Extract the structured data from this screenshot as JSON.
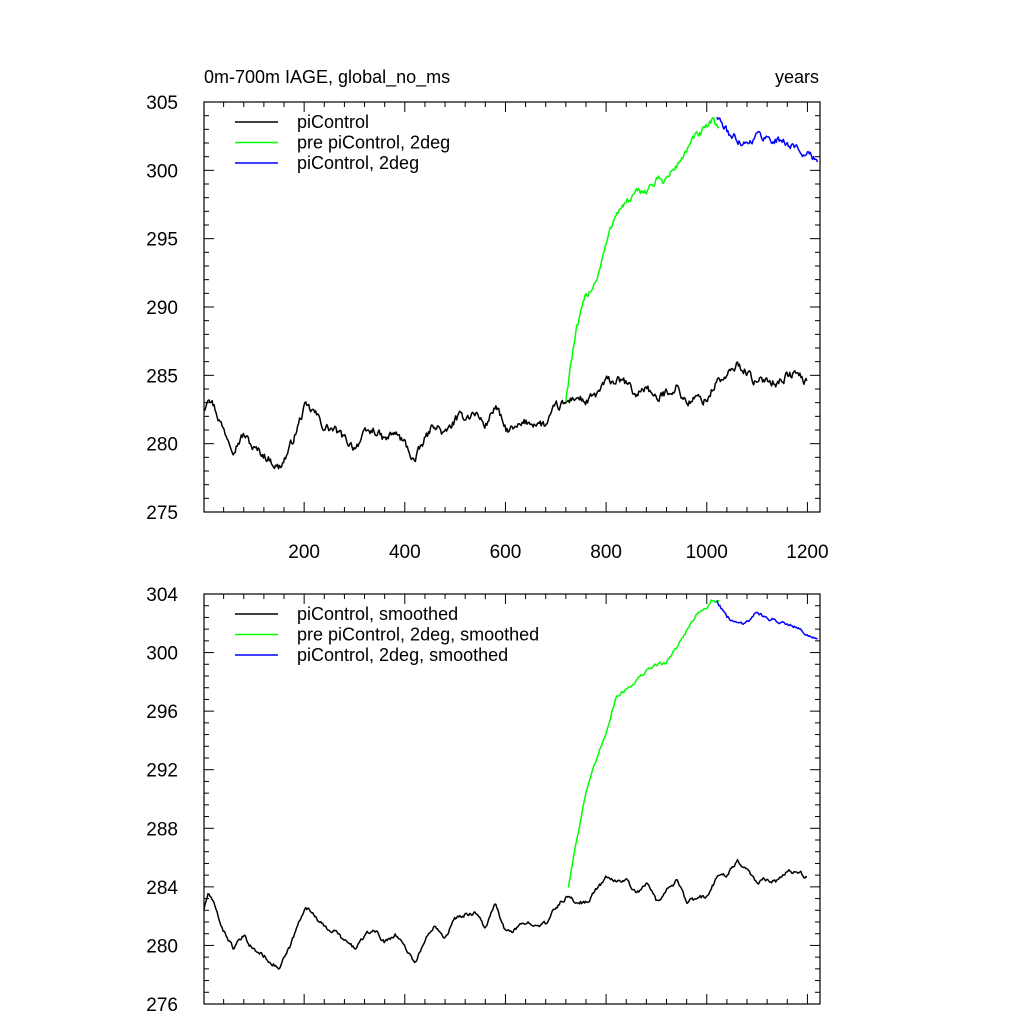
{
  "colors": {
    "black": "#000000",
    "green": "#00ff00",
    "blue": "#0000ff"
  },
  "chart_data": [
    {
      "type": "line",
      "title": "0m-700m IAGE, global_no_ms",
      "units_label": "years",
      "xlim": [
        1,
        1225
      ],
      "ylim": [
        275,
        305
      ],
      "x_ticks": [
        200,
        400,
        600,
        800,
        1000,
        1200
      ],
      "x_tick_labels": [
        "200",
        "400",
        "600",
        "800",
        "1000",
        "1200"
      ],
      "y_ticks": [
        275,
        280,
        285,
        290,
        295,
        300,
        305
      ],
      "y_tick_labels": [
        "275",
        "280",
        "285",
        "290",
        "295",
        "300",
        "305"
      ],
      "legend_position": "top-left",
      "series": [
        {
          "name": "piControl",
          "color": "#000000",
          "x_range": [
            1,
            1200
          ],
          "noise": 0.55,
          "anchors": [
            [
              1,
              282.5
            ],
            [
              10,
              283.8
            ],
            [
              20,
              282.9
            ],
            [
              40,
              281.0
            ],
            [
              60,
              279.8
            ],
            [
              80,
              280.7
            ],
            [
              100,
              279.6
            ],
            [
              120,
              279.2
            ],
            [
              140,
              278.6
            ],
            [
              150,
              278.2
            ],
            [
              170,
              279.5
            ],
            [
              190,
              281.5
            ],
            [
              200,
              282.6
            ],
            [
              220,
              282.3
            ],
            [
              240,
              281.2
            ],
            [
              260,
              281.0
            ],
            [
              280,
              280.3
            ],
            [
              300,
              279.8
            ],
            [
              320,
              280.6
            ],
            [
              340,
              281.0
            ],
            [
              360,
              280.2
            ],
            [
              380,
              280.8
            ],
            [
              400,
              280.0
            ],
            [
              420,
              278.7
            ],
            [
              440,
              280.3
            ],
            [
              460,
              281.5
            ],
            [
              480,
              280.6
            ],
            [
              500,
              281.7
            ],
            [
              520,
              282.0
            ],
            [
              540,
              282.3
            ],
            [
              560,
              281.3
            ],
            [
              580,
              282.8
            ],
            [
              600,
              281.0
            ],
            [
              620,
              281.0
            ],
            [
              640,
              281.5
            ],
            [
              660,
              281.6
            ],
            [
              680,
              281.3
            ],
            [
              700,
              282.6
            ],
            [
              720,
              282.9
            ],
            [
              740,
              283.5
            ],
            [
              760,
              283.0
            ],
            [
              780,
              283.5
            ],
            [
              800,
              284.5
            ],
            [
              820,
              284.6
            ],
            [
              840,
              284.4
            ],
            [
              860,
              283.5
            ],
            [
              880,
              284.3
            ],
            [
              900,
              283.1
            ],
            [
              920,
              283.8
            ],
            [
              940,
              284.2
            ],
            [
              960,
              283.0
            ],
            [
              980,
              283.3
            ],
            [
              1000,
              283.2
            ],
            [
              1020,
              284.6
            ],
            [
              1040,
              284.8
            ],
            [
              1060,
              285.8
            ],
            [
              1080,
              285.3
            ],
            [
              1100,
              284.3
            ],
            [
              1120,
              284.8
            ],
            [
              1140,
              284.5
            ],
            [
              1160,
              285.0
            ],
            [
              1180,
              285.1
            ],
            [
              1200,
              284.4
            ]
          ]
        },
        {
          "name": "pre piControl, 2deg",
          "color": "#00ff00",
          "x_range": [
            720,
            1025
          ],
          "noise": 0.5,
          "anchors": [
            [
              720,
              283.2
            ],
            [
              730,
              286.0
            ],
            [
              740,
              288.0
            ],
            [
              760,
              290.8
            ],
            [
              780,
              292.0
            ],
            [
              800,
              294.5
            ],
            [
              820,
              297.0
            ],
            [
              840,
              297.6
            ],
            [
              860,
              298.2
            ],
            [
              880,
              298.6
            ],
            [
              900,
              299.2
            ],
            [
              920,
              299.4
            ],
            [
              940,
              300.3
            ],
            [
              960,
              301.5
            ],
            [
              980,
              302.5
            ],
            [
              1000,
              303.0
            ],
            [
              1010,
              303.5
            ],
            [
              1025,
              303.3
            ]
          ]
        },
        {
          "name": "piControl, 2deg",
          "color": "#0000ff",
          "x_range": [
            1020,
            1220
          ],
          "noise": 0.5,
          "anchors": [
            [
              1020,
              304.0
            ],
            [
              1040,
              302.8
            ],
            [
              1060,
              302.3
            ],
            [
              1080,
              302.0
            ],
            [
              1100,
              302.6
            ],
            [
              1120,
              302.4
            ],
            [
              1140,
              302.2
            ],
            [
              1160,
              302.0
            ],
            [
              1180,
              301.6
            ],
            [
              1200,
              301.1
            ],
            [
              1220,
              300.7
            ]
          ]
        }
      ]
    },
    {
      "type": "line",
      "title": "",
      "xlim": [
        1,
        1225
      ],
      "ylim": [
        276,
        304
      ],
      "x_ticks": [
        200,
        400,
        600,
        800,
        1000,
        1200
      ],
      "x_tick_labels": [],
      "y_ticks": [
        276,
        280,
        284,
        288,
        292,
        296,
        300,
        304
      ],
      "y_tick_labels": [
        "276",
        "280",
        "284",
        "288",
        "292",
        "296",
        "300",
        "304"
      ],
      "legend_position": "top-left",
      "series": [
        {
          "name": "piControl, smoothed",
          "color": "#000000",
          "x_range": [
            1,
            1200
          ],
          "noise": 0.25,
          "anchors": [
            [
              1,
              282.5
            ],
            [
              10,
              283.6
            ],
            [
              20,
              282.8
            ],
            [
              40,
              281.0
            ],
            [
              60,
              279.8
            ],
            [
              80,
              280.6
            ],
            [
              100,
              279.7
            ],
            [
              120,
              279.3
            ],
            [
              140,
              278.7
            ],
            [
              150,
              278.4
            ],
            [
              170,
              279.7
            ],
            [
              190,
              281.6
            ],
            [
              200,
              282.6
            ],
            [
              220,
              282.2
            ],
            [
              240,
              281.2
            ],
            [
              260,
              281.0
            ],
            [
              280,
              280.3
            ],
            [
              300,
              279.8
            ],
            [
              320,
              280.6
            ],
            [
              340,
              281.1
            ],
            [
              360,
              280.2
            ],
            [
              380,
              280.8
            ],
            [
              400,
              280.0
            ],
            [
              420,
              278.8
            ],
            [
              440,
              280.3
            ],
            [
              460,
              281.5
            ],
            [
              480,
              280.6
            ],
            [
              500,
              281.8
            ],
            [
              520,
              282.1
            ],
            [
              540,
              282.3
            ],
            [
              560,
              281.2
            ],
            [
              580,
              282.8
            ],
            [
              600,
              280.9
            ],
            [
              620,
              281.1
            ],
            [
              640,
              281.5
            ],
            [
              660,
              281.6
            ],
            [
              680,
              281.4
            ],
            [
              700,
              282.6
            ],
            [
              720,
              283.3
            ],
            [
              740,
              283.0
            ],
            [
              760,
              282.9
            ],
            [
              780,
              283.8
            ],
            [
              800,
              284.6
            ],
            [
              820,
              284.4
            ],
            [
              840,
              284.5
            ],
            [
              860,
              283.5
            ],
            [
              880,
              284.3
            ],
            [
              900,
              283.0
            ],
            [
              920,
              283.8
            ],
            [
              940,
              284.4
            ],
            [
              960,
              282.9
            ],
            [
              980,
              283.2
            ],
            [
              1000,
              283.3
            ],
            [
              1020,
              284.6
            ],
            [
              1040,
              284.9
            ],
            [
              1060,
              285.8
            ],
            [
              1080,
              285.3
            ],
            [
              1100,
              284.3
            ],
            [
              1120,
              284.6
            ],
            [
              1140,
              284.4
            ],
            [
              1160,
              285.0
            ],
            [
              1180,
              285.1
            ],
            [
              1200,
              284.6
            ]
          ]
        },
        {
          "name": "pre piControl, 2deg, smoothed",
          "color": "#00ff00",
          "x_range": [
            725,
            1025
          ],
          "noise": 0.2,
          "anchors": [
            [
              725,
              284.0
            ],
            [
              740,
              287.0
            ],
            [
              760,
              290.5
            ],
            [
              780,
              292.5
            ],
            [
              800,
              294.6
            ],
            [
              820,
              297.0
            ],
            [
              840,
              297.5
            ],
            [
              860,
              298.1
            ],
            [
              880,
              298.7
            ],
            [
              900,
              299.2
            ],
            [
              920,
              299.3
            ],
            [
              940,
              300.4
            ],
            [
              960,
              301.5
            ],
            [
              980,
              302.6
            ],
            [
              1000,
              303.1
            ],
            [
              1010,
              303.5
            ],
            [
              1025,
              303.4
            ]
          ]
        },
        {
          "name": "piControl, 2deg, smoothed",
          "color": "#0000ff",
          "x_range": [
            1020,
            1220
          ],
          "noise": 0.2,
          "anchors": [
            [
              1020,
              303.6
            ],
            [
              1040,
              302.4
            ],
            [
              1060,
              302.0
            ],
            [
              1080,
              302.1
            ],
            [
              1100,
              302.8
            ],
            [
              1120,
              302.3
            ],
            [
              1140,
              302.2
            ],
            [
              1160,
              302.0
            ],
            [
              1180,
              301.8
            ],
            [
              1200,
              301.2
            ],
            [
              1220,
              300.8
            ]
          ]
        }
      ]
    }
  ]
}
